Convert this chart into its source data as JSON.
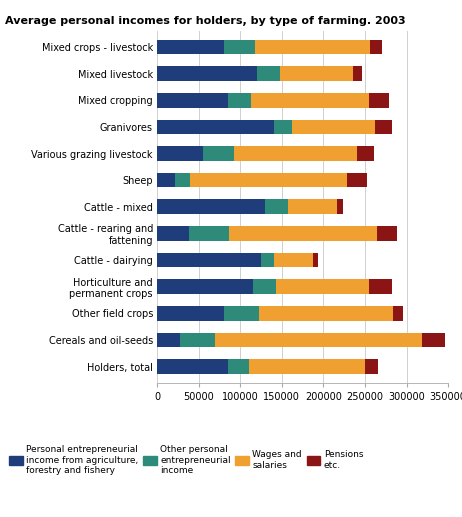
{
  "title": "Average personal incomes for holders, by type of farming. 2003",
  "categories": [
    "Mixed crops - livestock",
    "Mixed livestock",
    "Mixed cropping",
    "Granivores",
    "Various grazing livestock",
    "Sheep",
    "Cattle - mixed",
    "Cattle - rearing and\nfattening",
    "Cattle - dairying",
    "Horticulture and\npermanent crops",
    "Other field crops",
    "Cereals and oil-seeds",
    "Holders, total"
  ],
  "segments": {
    "personal_entrepreneurial": [
      80000,
      120000,
      85000,
      140000,
      55000,
      22000,
      130000,
      38000,
      125000,
      115000,
      80000,
      28000,
      85000
    ],
    "other_entrepreneurial": [
      38000,
      28000,
      28000,
      22000,
      38000,
      18000,
      28000,
      48000,
      15000,
      28000,
      42000,
      42000,
      25000
    ],
    "wages_salaries": [
      138000,
      88000,
      142000,
      100000,
      148000,
      188000,
      58000,
      178000,
      48000,
      112000,
      162000,
      248000,
      140000
    ],
    "pensions": [
      14000,
      10000,
      24000,
      20000,
      20000,
      24000,
      8000,
      24000,
      6000,
      28000,
      12000,
      28000,
      16000
    ]
  },
  "colors": {
    "personal_entrepreneurial": "#1f3d7a",
    "other_entrepreneurial": "#2e8b7a",
    "wages_salaries": "#f0a030",
    "pensions": "#8b1515"
  },
  "legend_labels": [
    "Personal entrepreneurial\nincome from agriculture,\nforestry and fishery",
    "Other personal\nentrepreneurial\nincome",
    "Wages and\nsalaries",
    "Pensions\netc."
  ],
  "xlim": [
    0,
    350000
  ],
  "xticks": [
    0,
    50000,
    100000,
    150000,
    200000,
    250000,
    300000,
    350000
  ],
  "xtick_labels": [
    "0",
    "50000",
    "100000",
    "150000",
    "200000",
    "250000",
    "300000",
    "350000"
  ],
  "background_color": "#ffffff",
  "grid_color": "#d0d0d0"
}
